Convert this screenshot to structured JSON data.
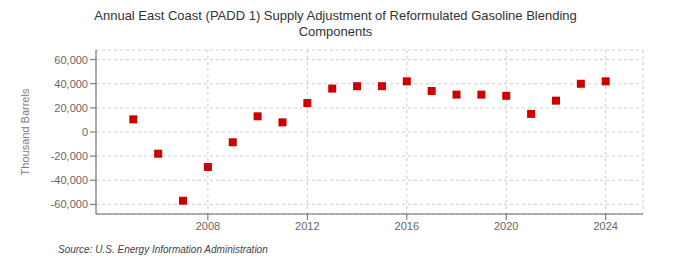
{
  "chart_data": {
    "type": "scatter",
    "title": "Annual East Coast (PADD 1) Supply Adjustment of Reformulated Gasoline Blending\nComponents",
    "ylabel": "Thousand Barrels",
    "annotations": [
      "Source: U.S. Energy Information Administration"
    ],
    "x": [
      2005,
      2006,
      2007,
      2008,
      2009,
      2010,
      2011,
      2012,
      2013,
      2014,
      2015,
      2016,
      2017,
      2018,
      2019,
      2020,
      2021,
      2022,
      2023,
      2024
    ],
    "values": [
      10500,
      -18000,
      -57000,
      -29000,
      -8500,
      13000,
      8000,
      24000,
      36000,
      38000,
      38000,
      42000,
      34000,
      31000,
      31000,
      30000,
      15000,
      26000,
      40000,
      42000
    ],
    "color": "#cc0000",
    "marker": "square",
    "xlim": [
      2003.5,
      2025.5
    ],
    "xticks": [
      2008,
      2012,
      2016,
      2020,
      2024
    ],
    "ylim": [
      -68000,
      68000
    ],
    "yticks": [
      {
        "value": -60000,
        "label": "-60,000"
      },
      {
        "value": -40000,
        "label": "-40,000"
      },
      {
        "value": -20000,
        "label": "-20,000"
      },
      0,
      {
        "value": 20000,
        "label": "20,000"
      },
      {
        "value": 40000,
        "label": "40,000"
      },
      {
        "value": 60000,
        "label": "60,000"
      }
    ],
    "grid": true
  }
}
